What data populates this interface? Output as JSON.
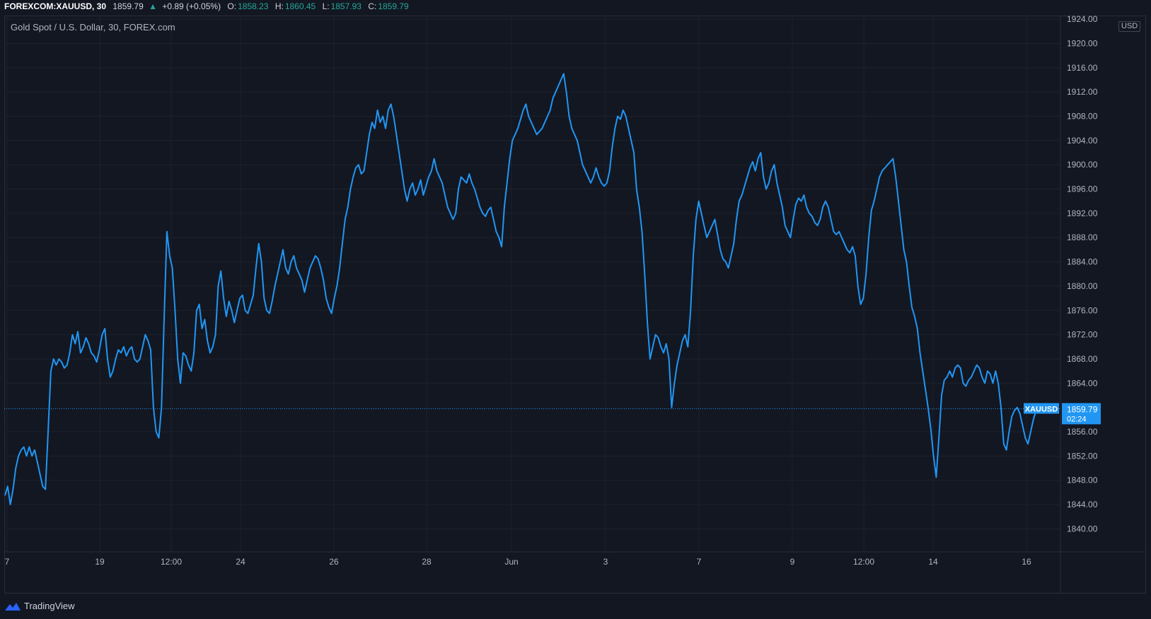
{
  "header": {
    "symbol": "FOREXCOM:XAUUSD, 30",
    "last": "1859.79",
    "change": "+0.89 (+0.05%)",
    "open_label": "O:",
    "open": "1858.23",
    "high_label": "H:",
    "high": "1860.45",
    "low_label": "L:",
    "low": "1857.93",
    "close_label": "C:",
    "close": "1859.79"
  },
  "legend": "Gold Spot / U.S. Dollar, 30, FOREX.com",
  "currency": "USD",
  "price_tag": {
    "label": "XAUUSD",
    "price": "1859.79",
    "countdown": "02:24"
  },
  "footer": {
    "brand": "TradingView"
  },
  "colors": {
    "background": "#131722",
    "line": "#2196f3",
    "up": "#26a69a",
    "grid": "#1e222d",
    "text": "#b2b5be"
  },
  "chart_data": {
    "type": "line",
    "x_ticks": [
      "7",
      "19",
      "12:00",
      "24",
      "26",
      "28",
      "Jun",
      "3",
      "7",
      "9",
      "12:00",
      "14",
      "16"
    ],
    "y_ticks": [
      1840,
      1844,
      1848,
      1852,
      1856,
      1864,
      1868,
      1872,
      1876,
      1880,
      1884,
      1888,
      1892,
      1896,
      1900,
      1904,
      1908,
      1912,
      1916,
      1920,
      1924
    ],
    "ylim": [
      1836.2,
      1924.6
    ],
    "last_value": 1859.79,
    "series": [
      {
        "values": [
          1845.5,
          1847,
          1844,
          1846.5,
          1850,
          1852,
          1853,
          1853.5,
          1852,
          1853.5,
          1852,
          1853,
          1851,
          1849,
          1847,
          1846.5,
          1856,
          1866,
          1868,
          1867,
          1868,
          1867.5,
          1866.5,
          1867,
          1869,
          1872,
          1870.5,
          1872.5,
          1869,
          1870,
          1871.5,
          1870.5,
          1869,
          1868.5,
          1867.5,
          1869.5,
          1872,
          1873,
          1868,
          1865,
          1866,
          1868,
          1869.5,
          1869,
          1870,
          1868.5,
          1869.5,
          1870,
          1868,
          1867.5,
          1868,
          1870,
          1872,
          1871,
          1869.5,
          1860,
          1856,
          1855,
          1860,
          1875,
          1889,
          1885,
          1883,
          1876,
          1868,
          1864,
          1869,
          1868.5,
          1867,
          1866,
          1869,
          1876,
          1877,
          1873,
          1874.5,
          1871,
          1869,
          1870,
          1872,
          1880,
          1882.5,
          1878,
          1875,
          1877.5,
          1876,
          1874,
          1876,
          1878,
          1878.5,
          1876,
          1875.5,
          1877,
          1878.5,
          1883,
          1887,
          1884,
          1878,
          1876,
          1875.5,
          1877.5,
          1880,
          1882,
          1884,
          1886,
          1883,
          1882,
          1884,
          1885,
          1883,
          1882,
          1881,
          1879,
          1881,
          1883,
          1884,
          1885,
          1884.5,
          1883,
          1881,
          1878,
          1876.5,
          1875.5,
          1878,
          1880,
          1883,
          1887,
          1891,
          1893,
          1896,
          1898,
          1899.5,
          1900,
          1898.5,
          1899,
          1902,
          1905,
          1907,
          1906,
          1909,
          1907,
          1908,
          1906,
          1909,
          1910,
          1908,
          1905,
          1902,
          1899,
          1896,
          1894,
          1896,
          1897,
          1895,
          1896,
          1897.5,
          1895,
          1896.5,
          1898,
          1899,
          1901,
          1899,
          1898,
          1897,
          1895,
          1893,
          1892,
          1891,
          1892,
          1896,
          1898,
          1897.5,
          1897,
          1898.5,
          1897,
          1896,
          1894.5,
          1893,
          1892,
          1891.5,
          1892.5,
          1893,
          1891,
          1889,
          1888,
          1886.5,
          1893,
          1897,
          1901,
          1904,
          1905,
          1906,
          1907.5,
          1909,
          1910,
          1908,
          1907,
          1906,
          1905,
          1905.5,
          1906,
          1907,
          1908,
          1909,
          1911,
          1912,
          1913,
          1914,
          1915,
          1912,
          1908,
          1906,
          1905,
          1904,
          1902,
          1900,
          1899,
          1898,
          1897,
          1898,
          1899.5,
          1898,
          1897,
          1896.5,
          1897,
          1899,
          1903,
          1906,
          1908,
          1907.5,
          1909,
          1908,
          1906,
          1904,
          1902,
          1896,
          1893,
          1889,
          1882,
          1874,
          1868,
          1870,
          1872,
          1871.5,
          1870,
          1869,
          1870.5,
          1868,
          1860,
          1864,
          1867,
          1869,
          1871,
          1872,
          1870,
          1876,
          1885,
          1891,
          1894,
          1892,
          1890,
          1888,
          1889,
          1890,
          1891,
          1888.5,
          1886,
          1884.5,
          1884,
          1883,
          1885,
          1887,
          1891,
          1894,
          1895,
          1896.5,
          1898,
          1899.5,
          1900.5,
          1899,
          1901,
          1902,
          1898,
          1896,
          1897,
          1899,
          1900,
          1897,
          1895,
          1893,
          1890,
          1889,
          1888,
          1891,
          1893.5,
          1894.5,
          1894,
          1895,
          1893,
          1892,
          1891.5,
          1890.5,
          1890,
          1891,
          1893,
          1894,
          1893,
          1891,
          1889,
          1888.5,
          1889,
          1888,
          1887,
          1886,
          1885.5,
          1886.5,
          1885,
          1880,
          1877,
          1878,
          1882,
          1888,
          1892.5,
          1894,
          1896,
          1898,
          1899,
          1899.5,
          1900,
          1900.5,
          1901,
          1898,
          1894,
          1890,
          1886,
          1884,
          1880,
          1876.5,
          1875,
          1873,
          1869,
          1866,
          1863,
          1860,
          1856.5,
          1852,
          1848.5,
          1855,
          1862,
          1864.5,
          1865,
          1866,
          1865,
          1866.5,
          1867,
          1866.5,
          1864,
          1863.5,
          1864.5,
          1865,
          1866,
          1867,
          1866.5,
          1865,
          1864,
          1866,
          1865.5,
          1864,
          1866,
          1864,
          1860,
          1854,
          1853,
          1856,
          1858.5,
          1859.5,
          1860,
          1859,
          1857,
          1855,
          1854,
          1856,
          1858,
          1859.5,
          1860,
          1859.8,
          1859.79
        ]
      }
    ]
  }
}
